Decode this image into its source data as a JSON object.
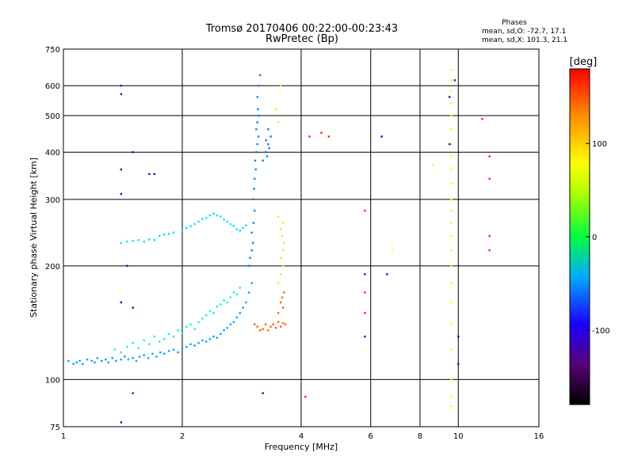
{
  "chart_data": {
    "type": "scatter",
    "title": "Tromsø 20170406 00:22:00-00:23:43",
    "subtitle": "RwPretec (Bp)",
    "xlabel": "Frequency [MHz]",
    "ylabel": "Stationary phase Virtual Height [km]",
    "x_scale": "log",
    "y_scale": "log",
    "xlim": [
      1,
      16
    ],
    "ylim": [
      75,
      750
    ],
    "x_ticks": [
      1,
      2,
      4,
      6,
      8,
      10,
      16
    ],
    "y_ticks": [
      75,
      100,
      200,
      300,
      400,
      500,
      600,
      750
    ],
    "grid": true,
    "phase_stats": {
      "title": "Phases",
      "line_o": "mean, sd,O: -72.7, 17.1",
      "line_x": "mean, sd,X: 101.3, 21.1"
    },
    "colorbar": {
      "label": "[deg]",
      "range": [
        -180,
        180
      ],
      "ticks": [
        100,
        0,
        -100
      ],
      "colormap": "rainbow"
    },
    "series": [
      {
        "color_phase": -80,
        "points": [
          [
            1.03,
            112
          ],
          [
            1.06,
            110
          ],
          [
            1.08,
            111
          ],
          [
            1.1,
            112
          ],
          [
            1.12,
            110
          ],
          [
            1.15,
            113
          ],
          [
            1.18,
            112
          ],
          [
            1.2,
            111
          ],
          [
            1.22,
            114
          ],
          [
            1.25,
            112
          ],
          [
            1.28,
            113
          ],
          [
            1.3,
            111
          ],
          [
            1.33,
            114
          ],
          [
            1.36,
            112
          ],
          [
            1.4,
            113
          ],
          [
            1.43,
            115
          ],
          [
            1.46,
            113
          ],
          [
            1.5,
            114
          ],
          [
            1.53,
            112
          ],
          [
            1.56,
            115
          ],
          [
            1.6,
            116
          ],
          [
            1.64,
            114
          ],
          [
            1.68,
            117
          ],
          [
            1.72,
            115
          ],
          [
            1.76,
            118
          ],
          [
            1.8,
            117
          ],
          [
            1.85,
            119
          ],
          [
            1.9,
            120
          ],
          [
            1.95,
            118
          ],
          [
            2.0,
            121
          ],
          [
            2.05,
            122
          ],
          [
            2.1,
            124
          ],
          [
            2.15,
            123
          ],
          [
            2.2,
            125
          ],
          [
            2.25,
            127
          ],
          [
            2.3,
            126
          ],
          [
            2.35,
            128
          ],
          [
            2.4,
            130
          ],
          [
            2.45,
            129
          ],
          [
            2.5,
            132
          ],
          [
            2.55,
            135
          ],
          [
            2.6,
            137
          ],
          [
            2.65,
            140
          ],
          [
            2.7,
            142
          ],
          [
            2.75,
            146
          ],
          [
            2.8,
            150
          ],
          [
            2.85,
            155
          ],
          [
            2.9,
            160
          ],
          [
            2.95,
            170
          ],
          [
            3.0,
            180
          ]
        ]
      },
      {
        "color_phase": -30,
        "points": [
          [
            1.35,
            120
          ],
          [
            1.4,
            118
          ],
          [
            1.45,
            122
          ],
          [
            1.5,
            125
          ],
          [
            1.55,
            121
          ],
          [
            1.6,
            127
          ],
          [
            1.65,
            124
          ],
          [
            1.7,
            130
          ],
          [
            1.75,
            126
          ],
          [
            1.8,
            128
          ],
          [
            1.85,
            132
          ],
          [
            1.9,
            130
          ],
          [
            1.95,
            135
          ],
          [
            2.0,
            133
          ],
          [
            2.05,
            138
          ],
          [
            2.1,
            140
          ],
          [
            2.15,
            136
          ],
          [
            2.2,
            142
          ],
          [
            2.25,
            145
          ],
          [
            2.3,
            148
          ],
          [
            2.35,
            152
          ],
          [
            2.4,
            150
          ],
          [
            2.45,
            156
          ],
          [
            2.5,
            158
          ],
          [
            2.55,
            162
          ],
          [
            2.6,
            160
          ],
          [
            2.65,
            165
          ],
          [
            2.7,
            170
          ],
          [
            2.75,
            168
          ],
          [
            2.8,
            175
          ]
        ]
      },
      {
        "color_phase": -60,
        "points": [
          [
            1.4,
            230
          ],
          [
            1.45,
            232
          ],
          [
            1.5,
            233
          ],
          [
            1.55,
            234
          ],
          [
            1.6,
            232
          ],
          [
            1.65,
            235
          ],
          [
            1.7,
            234
          ],
          [
            1.75,
            240
          ],
          [
            1.8,
            242
          ],
          [
            1.85,
            243
          ],
          [
            1.9,
            245
          ],
          [
            2.0,
            248
          ],
          [
            2.05,
            252
          ],
          [
            2.1,
            255
          ],
          [
            2.15,
            258
          ],
          [
            2.2,
            262
          ],
          [
            2.25,
            266
          ],
          [
            2.3,
            268
          ],
          [
            2.35,
            272
          ],
          [
            2.4,
            275
          ],
          [
            2.45,
            272
          ],
          [
            2.5,
            270
          ],
          [
            2.55,
            265
          ],
          [
            2.6,
            262
          ],
          [
            2.65,
            258
          ],
          [
            2.7,
            255
          ],
          [
            2.75,
            250
          ],
          [
            2.8,
            248
          ],
          [
            2.85,
            252
          ],
          [
            2.9,
            256
          ]
        ]
      },
      {
        "color_phase": -90,
        "points": [
          [
            2.95,
            200
          ],
          [
            2.97,
            210
          ],
          [
            3.0,
            220
          ],
          [
            3.02,
            230
          ],
          [
            3.0,
            245
          ],
          [
            3.03,
            260
          ],
          [
            3.05,
            280
          ],
          [
            3.02,
            300
          ],
          [
            3.04,
            320
          ],
          [
            3.05,
            340
          ],
          [
            3.07,
            360
          ],
          [
            3.06,
            380
          ],
          [
            3.08,
            400
          ],
          [
            3.1,
            420
          ],
          [
            3.12,
            440
          ],
          [
            3.08,
            460
          ],
          [
            3.1,
            480
          ],
          [
            3.12,
            500
          ],
          [
            3.11,
            520
          ],
          [
            3.1,
            560
          ],
          [
            3.12,
            600
          ],
          [
            3.15,
            640
          ],
          [
            3.2,
            380
          ],
          [
            3.25,
            400
          ],
          [
            3.3,
            420
          ],
          [
            3.28,
            390
          ],
          [
            3.32,
            410
          ],
          [
            3.35,
            440
          ],
          [
            3.3,
            460
          ],
          [
            3.26,
            430
          ]
        ]
      },
      {
        "color_phase": 150,
        "points": [
          [
            3.05,
            140
          ],
          [
            3.1,
            138
          ],
          [
            3.15,
            135
          ],
          [
            3.2,
            136
          ],
          [
            3.25,
            140
          ],
          [
            3.3,
            135
          ],
          [
            3.35,
            138
          ],
          [
            3.4,
            140
          ],
          [
            3.45,
            137
          ],
          [
            3.5,
            142
          ],
          [
            3.55,
            138
          ],
          [
            3.6,
            141
          ],
          [
            3.65,
            140
          ],
          [
            3.5,
            150
          ],
          [
            3.55,
            160
          ],
          [
            3.6,
            155
          ],
          [
            3.58,
            165
          ],
          [
            3.62,
            170
          ]
        ]
      },
      {
        "color_phase": 110,
        "points": [
          [
            3.5,
            180
          ],
          [
            3.55,
            190
          ],
          [
            3.6,
            200
          ],
          [
            3.55,
            210
          ],
          [
            3.6,
            220
          ],
          [
            3.62,
            230
          ],
          [
            3.58,
            240
          ],
          [
            3.55,
            250
          ],
          [
            3.6,
            260
          ],
          [
            3.5,
            270
          ],
          [
            3.45,
            520
          ],
          [
            3.5,
            480
          ],
          [
            3.55,
            600
          ]
        ]
      },
      {
        "color_phase": 100,
        "points": [
          [
            9.6,
            100
          ],
          [
            9.6,
            120
          ],
          [
            9.6,
            140
          ],
          [
            9.6,
            160
          ],
          [
            9.6,
            180
          ],
          [
            9.6,
            200
          ],
          [
            9.6,
            220
          ],
          [
            9.6,
            240
          ],
          [
            9.6,
            260
          ],
          [
            9.6,
            280
          ],
          [
            9.6,
            300
          ],
          [
            9.6,
            330
          ],
          [
            9.6,
            360
          ],
          [
            9.6,
            390
          ],
          [
            9.6,
            420
          ],
          [
            9.6,
            460
          ],
          [
            9.6,
            500
          ],
          [
            9.6,
            540
          ],
          [
            9.6,
            580
          ],
          [
            9.6,
            620
          ],
          [
            9.6,
            660
          ],
          [
            9.6,
            85
          ],
          [
            9.6,
            90
          ],
          [
            8.6,
            370
          ],
          [
            6.8,
            220
          ]
        ]
      },
      {
        "color_phase": 170,
        "points": [
          [
            4.1,
            90
          ],
          [
            4.2,
            440
          ],
          [
            4.5,
            450
          ],
          [
            4.7,
            440
          ],
          [
            12,
            390
          ],
          [
            12,
            340
          ],
          [
            12,
            240
          ],
          [
            12,
            220
          ],
          [
            11.5,
            490
          ],
          [
            5.8,
            280
          ],
          [
            5.8,
            170
          ],
          [
            5.8,
            150
          ]
        ]
      },
      {
        "color_phase": -150,
        "points": [
          [
            1.4,
            77
          ],
          [
            1.5,
            92
          ],
          [
            3.2,
            92
          ],
          [
            1.4,
            160
          ],
          [
            1.5,
            155
          ],
          [
            1.45,
            200
          ],
          [
            1.5,
            400
          ],
          [
            1.4,
            310
          ],
          [
            1.4,
            360
          ],
          [
            1.4,
            600
          ],
          [
            1.4,
            570
          ],
          [
            9.5,
            420
          ],
          [
            9.5,
            560
          ],
          [
            10,
            130
          ],
          [
            10,
            110
          ],
          [
            9.8,
            620
          ],
          [
            5.8,
            130
          ],
          [
            6.4,
            440
          ],
          [
            6.6,
            190
          ],
          [
            5.8,
            190
          ],
          [
            1.65,
            350
          ],
          [
            1.7,
            350
          ]
        ]
      }
    ]
  }
}
